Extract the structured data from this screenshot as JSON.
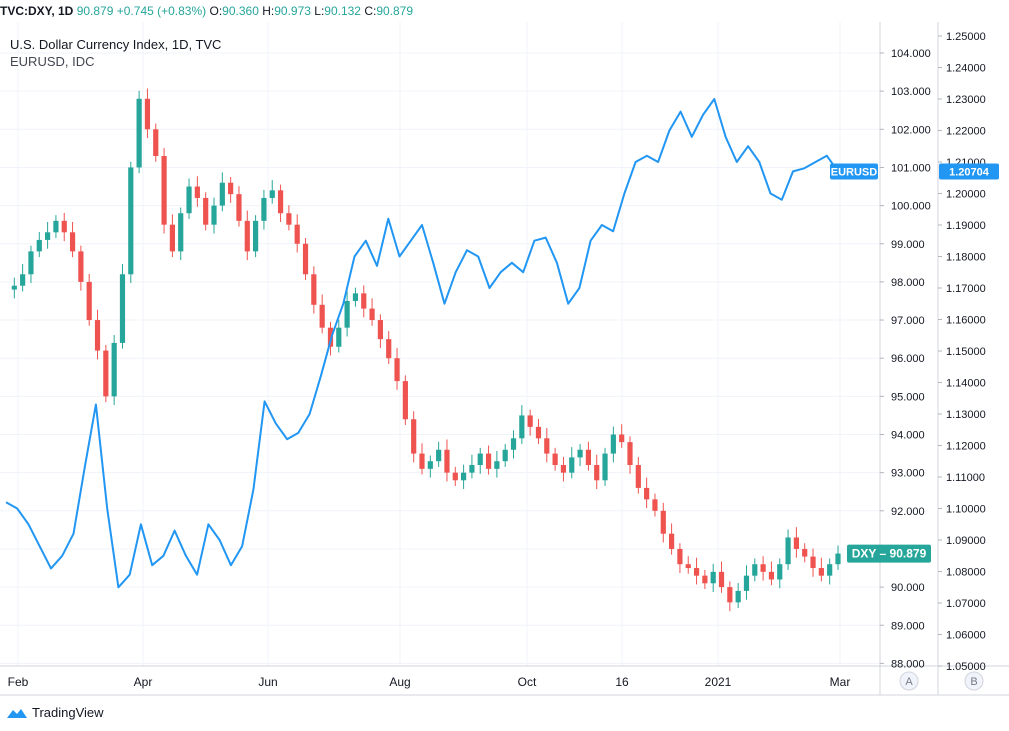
{
  "header": {
    "symbol": "TVC:DXY, 1D",
    "last": "90.879",
    "change": "+0.745 (+0.83%)",
    "o_label": "O:",
    "o": "90.360",
    "h_label": "H:",
    "h": "90.973",
    "l_label": "L:",
    "l": "90.132",
    "c_label": "C:",
    "c": "90.879"
  },
  "legend": {
    "main": "U.S. Dollar Currency Index, 1D, TVC",
    "compare": "EURUSD, IDC"
  },
  "brand": "TradingView",
  "colors": {
    "up": "#26a69a",
    "down": "#ef5350",
    "line": "#2196f3",
    "grid": "#f0f3fa"
  },
  "chart_data": {
    "type": "line",
    "x_ticks": [
      "Feb",
      "Apr",
      "Jun",
      "Aug",
      "Oct",
      "16",
      "2021",
      "Mar"
    ],
    "right_axis_a": {
      "ticks": [
        "104.000",
        "103.000",
        "102.000",
        "101.000",
        "100.000",
        "99.000",
        "98.000",
        "97.000",
        "96.000",
        "95.000",
        "94.000",
        "93.000",
        "92.000",
        "91.000",
        "90.000",
        "89.000",
        "88.000"
      ],
      "ylim": [
        88,
        104.5
      ],
      "button": "A"
    },
    "right_axis_b": {
      "ticks": [
        "1.25000",
        "1.24000",
        "1.23000",
        "1.22000",
        "1.21000",
        "1.20000",
        "1.19000",
        "1.18000",
        "1.17000",
        "1.16000",
        "1.15000",
        "1.14000",
        "1.13000",
        "1.12000",
        "1.11000",
        "1.10000",
        "1.09000",
        "1.08000",
        "1.07000",
        "1.06000",
        "1.05000"
      ],
      "ylim": [
        1.05,
        1.25
      ],
      "button": "B"
    },
    "series": [
      {
        "name": "DXY",
        "style": "candles",
        "last_label": "DXY",
        "last_value": "90.879",
        "values": [
          97.8,
          97.9,
          98.2,
          98.8,
          99.1,
          99.3,
          99.6,
          99.3,
          98.8,
          98.0,
          97.0,
          96.2,
          95.0,
          96.4,
          98.2,
          101.0,
          102.8,
          102.0,
          101.3,
          99.5,
          98.8,
          99.8,
          100.5,
          100.2,
          99.5,
          100.0,
          100.6,
          100.3,
          99.6,
          98.8,
          99.6,
          100.2,
          100.4,
          99.8,
          99.5,
          99.0,
          98.2,
          97.4,
          96.8,
          96.3,
          96.8,
          97.5,
          97.7,
          97.3,
          97.0,
          96.5,
          96.0,
          95.4,
          94.4,
          93.5,
          93.1,
          93.3,
          93.6,
          93.0,
          92.8,
          93.0,
          93.2,
          93.5,
          93.1,
          93.3,
          93.6,
          93.9,
          94.5,
          94.2,
          93.9,
          93.5,
          93.2,
          93.0,
          93.4,
          93.6,
          93.2,
          92.8,
          93.5,
          94.0,
          93.8,
          93.2,
          92.6,
          92.3,
          92.0,
          91.4,
          91.0,
          90.6,
          90.5,
          90.3,
          90.1,
          90.4,
          90.0,
          89.6,
          89.9,
          90.3,
          90.6,
          90.4,
          90.2,
          90.6,
          91.3,
          91.0,
          90.8,
          90.5,
          90.3,
          90.6,
          90.879
        ]
      },
      {
        "name": "EURUSD",
        "style": "line",
        "last_label": "EURUSD",
        "last_value": "1.20704",
        "values": [
          1.102,
          1.1,
          1.095,
          1.088,
          1.081,
          1.085,
          1.092,
          1.113,
          1.133,
          1.1,
          1.075,
          1.079,
          1.095,
          1.082,
          1.085,
          1.093,
          1.085,
          1.079,
          1.095,
          1.09,
          1.082,
          1.088,
          1.106,
          1.134,
          1.127,
          1.122,
          1.124,
          1.13,
          1.142,
          1.155,
          1.165,
          1.18,
          1.185,
          1.177,
          1.192,
          1.18,
          1.185,
          1.19,
          1.178,
          1.165,
          1.175,
          1.182,
          1.18,
          1.17,
          1.175,
          1.178,
          1.175,
          1.185,
          1.186,
          1.178,
          1.165,
          1.17,
          1.185,
          1.19,
          1.188,
          1.2,
          1.21,
          1.212,
          1.21,
          1.22,
          1.226,
          1.218,
          1.225,
          1.23,
          1.218,
          1.21,
          1.215,
          1.21,
          1.2,
          1.198,
          1.207,
          1.208,
          1.21,
          1.212,
          1.207
        ]
      }
    ]
  }
}
